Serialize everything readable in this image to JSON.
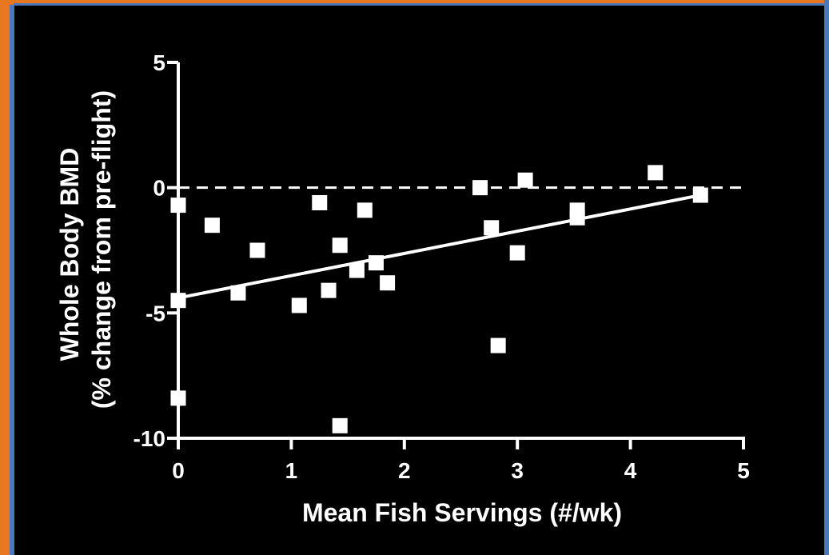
{
  "chart_data": {
    "type": "scatter",
    "title": "",
    "xlabel": "Mean Fish Servings (#/wk)",
    "ylabel": [
      "Whole Body BMD",
      "(% change from pre-flight)"
    ],
    "xlim": [
      0,
      5
    ],
    "ylim": [
      -10,
      5
    ],
    "x_ticks": [
      0,
      1,
      2,
      3,
      4,
      5
    ],
    "y_ticks": [
      -10,
      -5,
      0,
      5
    ],
    "x_tick_labels": [
      "0",
      "1",
      "2",
      "3",
      "4",
      "5"
    ],
    "y_tick_labels": [
      "-10",
      "-5",
      "0",
      "5"
    ],
    "grid": false,
    "legend": "none",
    "reference_line": {
      "y": 0,
      "style": "dashed"
    },
    "regression_line": {
      "x": [
        0,
        4.62
      ],
      "y": [
        -4.4,
        -0.3
      ]
    },
    "points": [
      {
        "x": 0.0,
        "y": -0.7
      },
      {
        "x": 0.0,
        "y": -4.5
      },
      {
        "x": 0.0,
        "y": -8.4
      },
      {
        "x": 0.3,
        "y": -1.5
      },
      {
        "x": 0.53,
        "y": -4.2
      },
      {
        "x": 0.7,
        "y": -2.5
      },
      {
        "x": 1.07,
        "y": -4.7
      },
      {
        "x": 1.25,
        "y": -0.6
      },
      {
        "x": 1.33,
        "y": -4.1
      },
      {
        "x": 1.43,
        "y": -2.3
      },
      {
        "x": 1.43,
        "y": -9.5
      },
      {
        "x": 1.58,
        "y": -3.3
      },
      {
        "x": 1.65,
        "y": -0.9
      },
      {
        "x": 1.75,
        "y": -3.0
      },
      {
        "x": 1.85,
        "y": -3.8
      },
      {
        "x": 2.67,
        "y": 0.0
      },
      {
        "x": 2.77,
        "y": -1.6
      },
      {
        "x": 2.83,
        "y": -6.3
      },
      {
        "x": 3.0,
        "y": -2.6
      },
      {
        "x": 3.07,
        "y": 0.3
      },
      {
        "x": 3.53,
        "y": -0.9
      },
      {
        "x": 3.53,
        "y": -1.2
      },
      {
        "x": 4.22,
        "y": 0.6
      },
      {
        "x": 4.62,
        "y": -0.3
      }
    ],
    "colors": {
      "background": "#000000",
      "foreground": "#ffffff"
    }
  }
}
